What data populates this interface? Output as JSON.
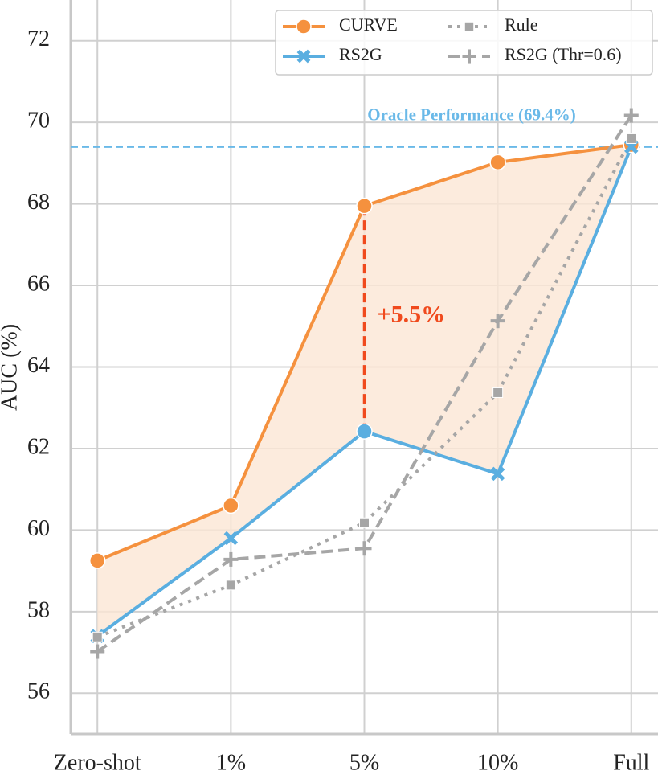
{
  "chart_data": {
    "type": "line",
    "y_label": "AUC (%)",
    "categories": [
      "Zero-shot",
      "1%",
      "5%",
      "10%",
      "Full"
    ],
    "series": [
      {
        "name": "CURVE",
        "color": "#f5913e",
        "marker": "circle",
        "linestyle": "solid",
        "values": [
          59.25,
          60.6,
          67.95,
          69.02,
          69.45
        ]
      },
      {
        "name": "RS2G",
        "color": "#5aaee0",
        "marker": "x",
        "linestyle": "solid",
        "values": [
          57.4,
          59.8,
          62.42,
          61.38,
          69.4
        ]
      },
      {
        "name": "Rule",
        "color": "#a6a6a6",
        "marker": "square",
        "linestyle": "dotted",
        "values": [
          57.38,
          58.65,
          60.18,
          63.37,
          69.6
        ]
      },
      {
        "name": "RS2G (Thr=0.6)",
        "color": "#a6a6a6",
        "marker": "plus",
        "linestyle": "dashed",
        "values": [
          57.02,
          59.28,
          59.55,
          65.13,
          70.17
        ]
      }
    ],
    "fill_between": {
      "color": "#fbe6d5"
    },
    "reference_line": {
      "value": 69.4,
      "label": "Oracle Performance (69.4%)",
      "color": "#6ab9e8"
    },
    "annotation": {
      "text": "+5.5%",
      "color": "#f04a1d"
    },
    "ylim": [
      55,
      73
    ],
    "yticks": [
      56,
      58,
      60,
      62,
      64,
      66,
      68,
      70,
      72
    ],
    "grid": true,
    "legend": "upper right"
  }
}
